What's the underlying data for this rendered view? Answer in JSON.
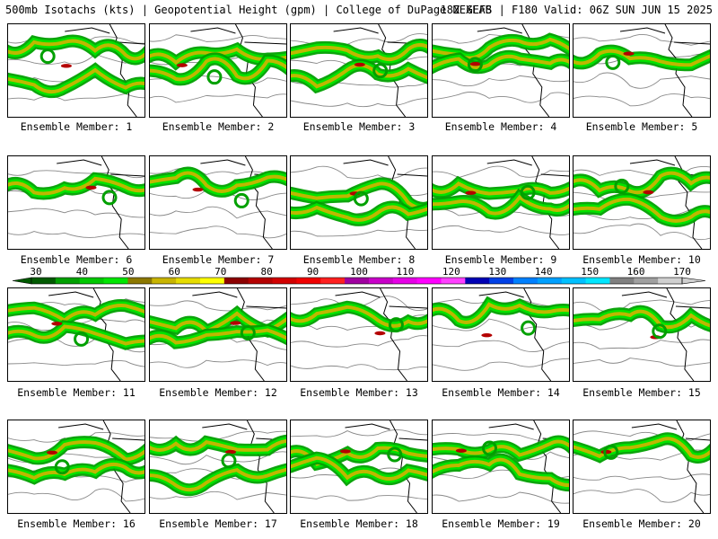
{
  "header": {
    "left": "500mb Isotachs (kts) | Geopotential Height (gpm) | College of DuPage NEXLAB",
    "right": "18Z GEFS | F180 Valid: 06Z SUN JUN 15 2025"
  },
  "members": [
    {
      "label": "Ensemble Member: 1"
    },
    {
      "label": "Ensemble Member: 2"
    },
    {
      "label": "Ensemble Member: 3"
    },
    {
      "label": "Ensemble Member: 4"
    },
    {
      "label": "Ensemble Member: 5"
    },
    {
      "label": "Ensemble Member: 6"
    },
    {
      "label": "Ensemble Member: 7"
    },
    {
      "label": "Ensemble Member: 8"
    },
    {
      "label": "Ensemble Member: 9"
    },
    {
      "label": "Ensemble Member: 10"
    },
    {
      "label": "Ensemble Member: 11"
    },
    {
      "label": "Ensemble Member: 12"
    },
    {
      "label": "Ensemble Member: 13"
    },
    {
      "label": "Ensemble Member: 14"
    },
    {
      "label": "Ensemble Member: 15"
    },
    {
      "label": "Ensemble Member: 16"
    },
    {
      "label": "Ensemble Member: 17"
    },
    {
      "label": "Ensemble Member: 18"
    },
    {
      "label": "Ensemble Member: 19"
    },
    {
      "label": "Ensemble Member: 20"
    }
  ],
  "legend": {
    "ticks": [
      "30",
      "40",
      "50",
      "60",
      "70",
      "80",
      "90",
      "100",
      "110",
      "120",
      "130",
      "140",
      "150",
      "160",
      "170"
    ],
    "colors": [
      "#005a00",
      "#00a000",
      "#00c800",
      "#00e600",
      "#8c7800",
      "#c8b400",
      "#e6dc00",
      "#ffff00",
      "#8c0000",
      "#b40000",
      "#d20000",
      "#f00000",
      "#ff2020",
      "#a000a0",
      "#c800c8",
      "#e600e6",
      "#ff00ff",
      "#ff40ff",
      "#0000b4",
      "#0040e6",
      "#0080ff",
      "#00a0ff",
      "#00c0ff",
      "#00e6ff",
      "#808080",
      "#a0a0a0",
      "#d0d0d0"
    ]
  },
  "colors": {
    "jet_outer": "#00a000",
    "jet_mid": "#00e600",
    "jet_core": "#c8b400",
    "jet_max": "#b40000"
  }
}
